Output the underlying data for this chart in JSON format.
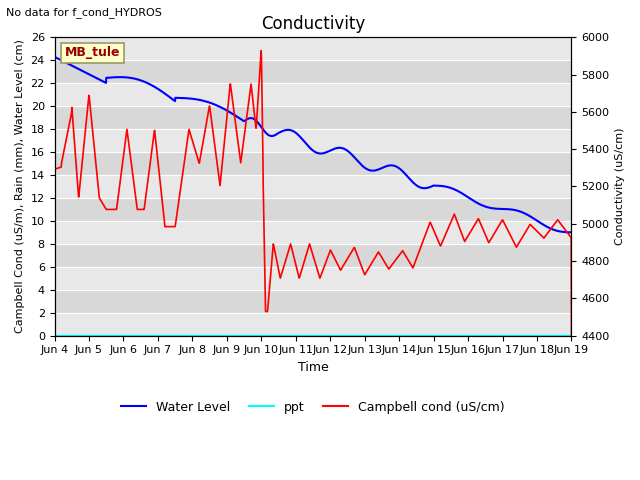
{
  "title": "Conductivity",
  "top_left_text": "No data for f_cond_HYDROS",
  "xlabel": "Time",
  "ylabel_left": "Campbell Cond (uS/m), Rain (mm), Water Level (cm)",
  "ylabel_right": "Conductivity (uS/cm)",
  "ylim_left": [
    0,
    26
  ],
  "ylim_right": [
    4400,
    6000
  ],
  "xtick_labels": [
    "Jun 4",
    "Jun 5",
    "Jun 6",
    "Jun 7",
    "Jun 8",
    "Jun 9",
    "Jun 10",
    "Jun 11",
    "Jun 12",
    "Jun 13",
    "Jun 14",
    "Jun 15",
    "Jun 16",
    "Jun 17",
    "Jun 18",
    "Jun 19"
  ],
  "station_box_text": "MB_tule",
  "background_color": "#e8e8e8",
  "background_color2": "#f0f0f0",
  "grid_color": "white",
  "wl_color": "#0000ff",
  "cc_color": "red",
  "ppt_color": "cyan",
  "title_fontsize": 12,
  "label_fontsize": 8,
  "tick_fontsize": 8
}
